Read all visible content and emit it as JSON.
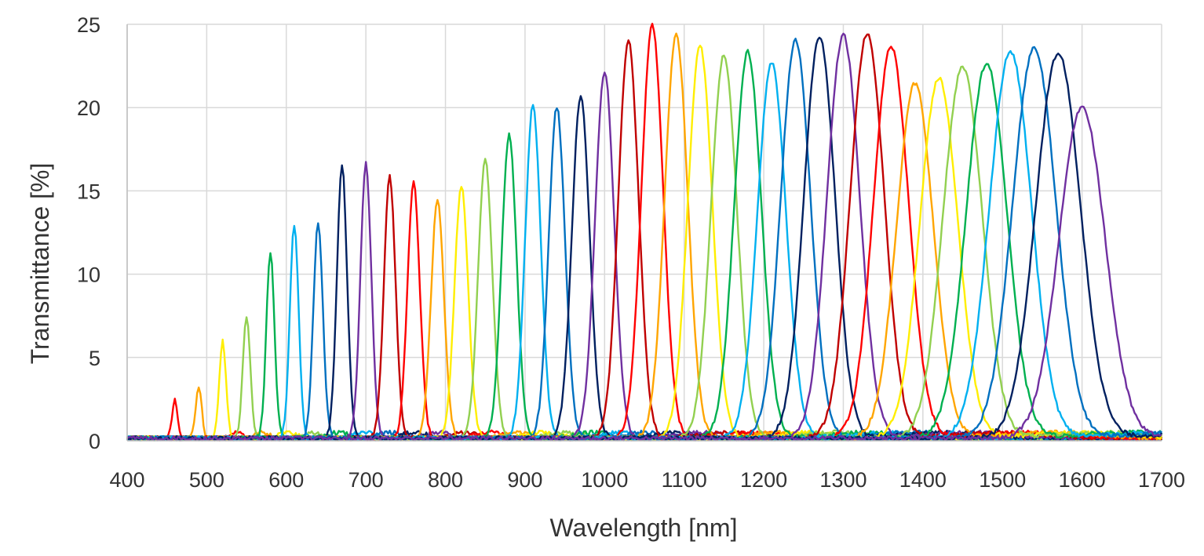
{
  "chart_data": {
    "type": "line",
    "title": "",
    "xlabel": "Wavelength [nm]",
    "ylabel": "Transmittance [%]",
    "xlim": [
      400,
      1700
    ],
    "ylim": [
      0,
      25
    ],
    "x_ticks": [
      "400",
      "500",
      "600",
      "700",
      "800",
      "900",
      "1000",
      "1100",
      "1200",
      "1300",
      "1400",
      "1500",
      "1600",
      "1700"
    ],
    "y_ticks": [
      "0",
      "5",
      "10",
      "15",
      "20",
      "25"
    ],
    "grid": true,
    "legend": "none",
    "peak_model": "gaussian transmission peak per filter: center wavelength (nm), peak transmittance (%), FWHM (nm)",
    "series": [
      {
        "center": 460,
        "peak": 2.3,
        "fwhm": 8,
        "color": "#ff0000"
      },
      {
        "center": 490,
        "peak": 3.0,
        "fwhm": 9,
        "color": "#ffa500"
      },
      {
        "center": 520,
        "peak": 5.8,
        "fwhm": 10,
        "color": "#ffee00"
      },
      {
        "center": 550,
        "peak": 7.3,
        "fwhm": 11,
        "color": "#92d050"
      },
      {
        "center": 580,
        "peak": 11.2,
        "fwhm": 12,
        "color": "#00b050"
      },
      {
        "center": 610,
        "peak": 12.8,
        "fwhm": 13,
        "color": "#00b0f0"
      },
      {
        "center": 640,
        "peak": 13.0,
        "fwhm": 14,
        "color": "#0070c0"
      },
      {
        "center": 670,
        "peak": 16.4,
        "fwhm": 15,
        "color": "#002060"
      },
      {
        "center": 700,
        "peak": 16.5,
        "fwhm": 16,
        "color": "#7030a0"
      },
      {
        "center": 730,
        "peak": 15.7,
        "fwhm": 17,
        "color": "#c00000"
      },
      {
        "center": 760,
        "peak": 15.4,
        "fwhm": 18,
        "color": "#ff0000"
      },
      {
        "center": 790,
        "peak": 14.3,
        "fwhm": 19,
        "color": "#ffa500"
      },
      {
        "center": 820,
        "peak": 15.2,
        "fwhm": 20,
        "color": "#ffee00"
      },
      {
        "center": 850,
        "peak": 16.7,
        "fwhm": 21,
        "color": "#92d050"
      },
      {
        "center": 880,
        "peak": 18.2,
        "fwhm": 22,
        "color": "#00b050"
      },
      {
        "center": 910,
        "peak": 20.0,
        "fwhm": 23,
        "color": "#00b0f0"
      },
      {
        "center": 940,
        "peak": 19.9,
        "fwhm": 24,
        "color": "#0070c0"
      },
      {
        "center": 970,
        "peak": 20.6,
        "fwhm": 26,
        "color": "#002060"
      },
      {
        "center": 1000,
        "peak": 22.0,
        "fwhm": 28,
        "color": "#7030a0"
      },
      {
        "center": 1030,
        "peak": 23.9,
        "fwhm": 30,
        "color": "#c00000"
      },
      {
        "center": 1060,
        "peak": 24.8,
        "fwhm": 32,
        "color": "#ff0000"
      },
      {
        "center": 1090,
        "peak": 24.2,
        "fwhm": 34,
        "color": "#ffa500"
      },
      {
        "center": 1120,
        "peak": 23.6,
        "fwhm": 36,
        "color": "#ffee00"
      },
      {
        "center": 1150,
        "peak": 23.0,
        "fwhm": 38,
        "color": "#92d050"
      },
      {
        "center": 1180,
        "peak": 23.2,
        "fwhm": 40,
        "color": "#00b050"
      },
      {
        "center": 1210,
        "peak": 22.5,
        "fwhm": 42,
        "color": "#00b0f0"
      },
      {
        "center": 1240,
        "peak": 23.9,
        "fwhm": 44,
        "color": "#0070c0"
      },
      {
        "center": 1270,
        "peak": 24.1,
        "fwhm": 46,
        "color": "#002060"
      },
      {
        "center": 1300,
        "peak": 24.2,
        "fwhm": 48,
        "color": "#7030a0"
      },
      {
        "center": 1330,
        "peak": 24.3,
        "fwhm": 50,
        "color": "#c00000"
      },
      {
        "center": 1360,
        "peak": 23.5,
        "fwhm": 52,
        "color": "#ff0000"
      },
      {
        "center": 1390,
        "peak": 21.3,
        "fwhm": 54,
        "color": "#ffa500"
      },
      {
        "center": 1420,
        "peak": 21.6,
        "fwhm": 56,
        "color": "#ffee00"
      },
      {
        "center": 1450,
        "peak": 22.3,
        "fwhm": 58,
        "color": "#92d050"
      },
      {
        "center": 1480,
        "peak": 22.5,
        "fwhm": 60,
        "color": "#00b050"
      },
      {
        "center": 1510,
        "peak": 23.2,
        "fwhm": 62,
        "color": "#00b0f0"
      },
      {
        "center": 1540,
        "peak": 23.4,
        "fwhm": 64,
        "color": "#0070c0"
      },
      {
        "center": 1570,
        "peak": 23.1,
        "fwhm": 66,
        "color": "#002060"
      },
      {
        "center": 1600,
        "peak": 19.9,
        "fwhm": 68,
        "color": "#7030a0"
      }
    ]
  }
}
